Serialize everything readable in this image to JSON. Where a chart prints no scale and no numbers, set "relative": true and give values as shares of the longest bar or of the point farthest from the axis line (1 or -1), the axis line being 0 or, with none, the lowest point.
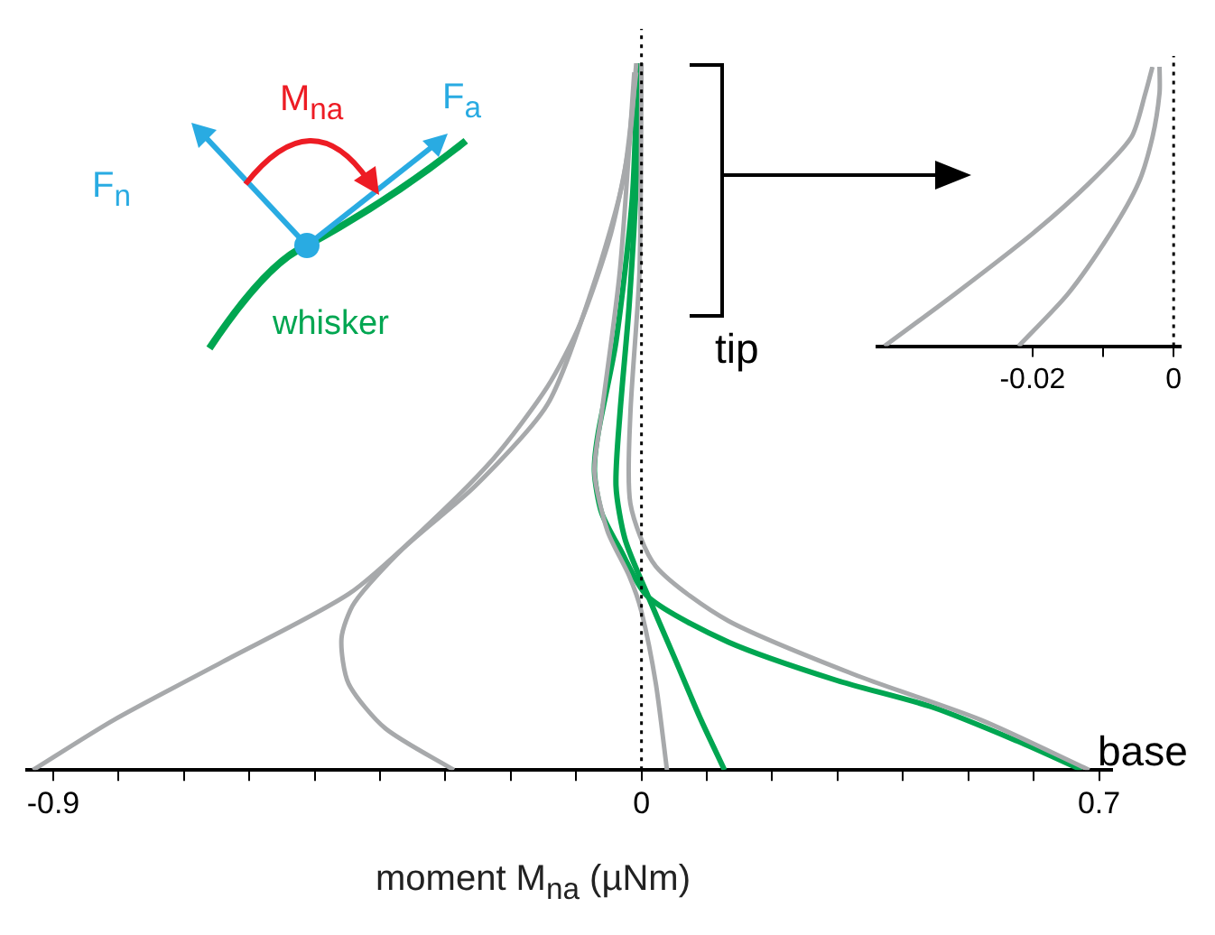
{
  "chart_data": [
    {
      "type": "line",
      "relative": true,
      "xlabel": "moment M$_{na}$ (µNm)",
      "xlim": [
        -0.94,
        0.72
      ],
      "xticks": [
        {
          "value": -0.9,
          "label": "-0.9"
        },
        {
          "value": -0.8,
          "label": null
        },
        {
          "value": -0.7,
          "label": null
        },
        {
          "value": -0.6,
          "label": null
        },
        {
          "value": -0.5,
          "label": null
        },
        {
          "value": -0.4,
          "label": null
        },
        {
          "value": -0.3,
          "label": null
        },
        {
          "value": -0.2,
          "label": null
        },
        {
          "value": -0.1,
          "label": null
        },
        {
          "value": 0,
          "label": "0"
        },
        {
          "value": 0.1,
          "label": null
        },
        {
          "value": 0.2,
          "label": null
        },
        {
          "value": 0.3,
          "label": null
        },
        {
          "value": 0.4,
          "label": null
        },
        {
          "value": 0.5,
          "label": null
        },
        {
          "value": 0.6,
          "label": null
        },
        {
          "value": 0.7,
          "label": "0.7"
        }
      ],
      "series": [
        {
          "color": "#a7a9ab",
          "x": [
            -0.008,
            -0.019,
            -0.047,
            -0.094,
            -0.144,
            -0.227,
            -0.337,
            -0.448,
            -0.641,
            -0.807,
            -0.931
          ],
          "values": [
            1,
            0.885,
            0.758,
            0.631,
            0.542,
            0.44,
            0.338,
            0.249,
            0.153,
            0.071,
            0
          ]
        },
        {
          "color": "#a7a9ab",
          "x": [
            -0.008,
            -0.028,
            -0.075,
            -0.144,
            -0.254,
            -0.365,
            -0.439,
            -0.459,
            -0.448,
            -0.392,
            -0.287
          ],
          "values": [
            0.987,
            0.835,
            0.682,
            0.517,
            0.402,
            0.313,
            0.237,
            0.186,
            0.122,
            0.059,
            0
          ]
        },
        {
          "color": "#a7a9ab",
          "x": [
            -0.011,
            -0.033,
            -0.061,
            -0.072,
            -0.052,
            -0.019,
            0,
            0.022,
            0.039
          ],
          "values": [
            0.987,
            0.707,
            0.504,
            0.422,
            0.338,
            0.275,
            0.224,
            0.122,
            0
          ]
        },
        {
          "color": "#a7a9ab",
          "x": [
            0,
            -0.003,
            -0.017,
            -0.017,
            0.022,
            0.133,
            0.326,
            0.519,
            0.685
          ],
          "values": [
            1,
            0.707,
            0.504,
            0.377,
            0.288,
            0.211,
            0.135,
            0.071,
            0
          ]
        },
        {
          "color": "#00a651",
          "x": [
            -0.006,
            -0.014,
            -0.039,
            -0.066,
            -0.072,
            -0.061,
            -0.033,
            0.011,
            0.133,
            0.298,
            0.445,
            0.575,
            0.674
          ],
          "values": [
            1,
            0.809,
            0.606,
            0.478,
            0.422,
            0.364,
            0.313,
            0.244,
            0.181,
            0.127,
            0.089,
            0.041,
            0
          ]
        },
        {
          "color": "#00a651",
          "x": [
            -0.006,
            -0.008,
            -0.019,
            -0.033,
            -0.039,
            -0.025,
            0.011,
            0.05,
            0.091,
            0.127
          ],
          "values": [
            1,
            0.835,
            0.656,
            0.504,
            0.402,
            0.326,
            0.244,
            0.16,
            0.071,
            0
          ]
        }
      ],
      "ref_lines": [
        {
          "axis": "x",
          "value": 0,
          "line_style": "dotted",
          "color": "#000000"
        }
      ],
      "annotations": [
        "F$_{n}$",
        "M$_{na}$",
        "F$_{a}$",
        "whisker",
        "tip",
        "base"
      ]
    },
    {
      "type": "line",
      "relative": true,
      "xlim": [
        -0.042,
        0.001
      ],
      "xticks": [
        {
          "value": -0.02,
          "label": "-0.02"
        },
        {
          "value": -0.01,
          "label": null
        },
        {
          "value": 0,
          "label": "0"
        }
      ],
      "series": [
        {
          "color": "#a7a9ab",
          "x": [
            -0.041,
            -0.031,
            -0.02,
            -0.012,
            -0.006,
            -0.004,
            -0.003
          ],
          "values": [
            0,
            0.187,
            0.403,
            0.583,
            0.748,
            0.906,
            1
          ]
        },
        {
          "color": "#a7a9ab",
          "x": [
            -0.022,
            -0.015,
            -0.009,
            -0.005,
            -0.003,
            -0.002,
            -0.002
          ],
          "values": [
            0,
            0.187,
            0.403,
            0.583,
            0.748,
            0.906,
            1
          ]
        }
      ],
      "ref_lines": [
        {
          "axis": "x",
          "value": 0,
          "line_style": "dotted",
          "color": "#000000"
        }
      ]
    }
  ]
}
